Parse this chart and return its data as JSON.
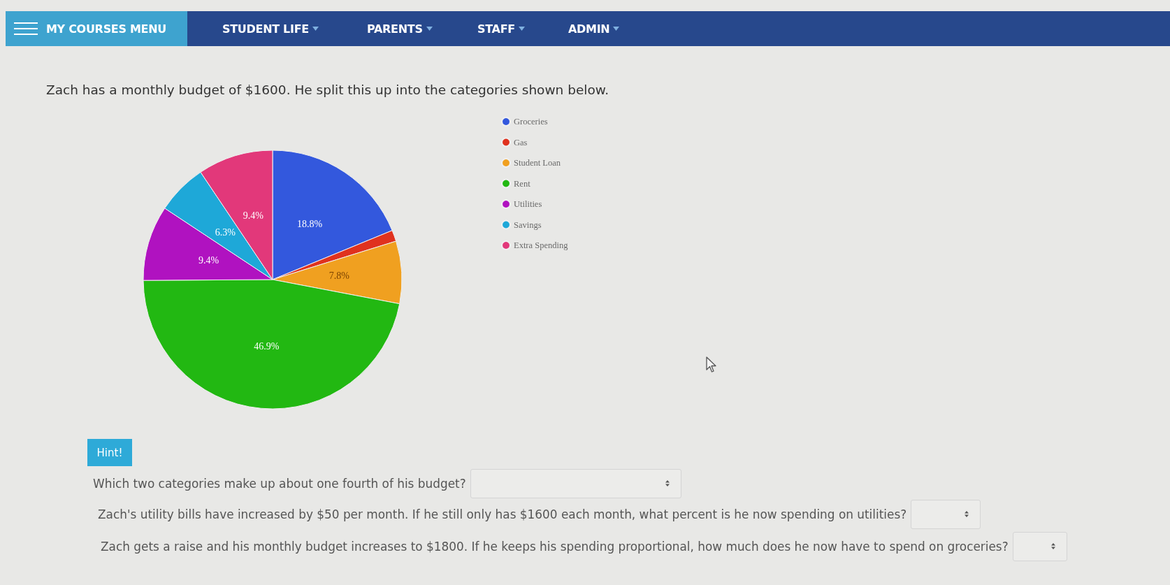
{
  "chart_data": {
    "type": "pie",
    "title": "Zach has a monthly budget of $1600. He split this up into the categories shown below.",
    "categories": [
      "Groceries",
      "Gas",
      "Student Loan",
      "Rent",
      "Utilities",
      "Savings",
      "Extra Spending"
    ],
    "values": [
      18.8,
      1.4,
      7.8,
      46.9,
      9.4,
      6.3,
      9.4
    ],
    "colors": [
      "#3358dd",
      "#e0321e",
      "#f0a020",
      "#22b812",
      "#b012c0",
      "#1ea8d8",
      "#e2387a"
    ],
    "value_labels": [
      "18.8%",
      null,
      "7.8%",
      "46.9%",
      "9.4%",
      "6.3%",
      "9.4%"
    ],
    "legend": "top right",
    "annotations": [
      "MY COURSES MENU",
      "STUDENT LIFE",
      "PARENTS",
      "STAFF",
      "ADMIN",
      "Hint!",
      "Which two categories make up about one fourth of his budget?",
      "Zach's utility bills have increased by $50 per month. If he still only has $1600 each month, what percent is he now spending on utilities?",
      "Zach gets a raise and his monthly budget increases to $1800. If he keeps his spending proportional, how much does he now have to spend on groceries?"
    ]
  }
}
